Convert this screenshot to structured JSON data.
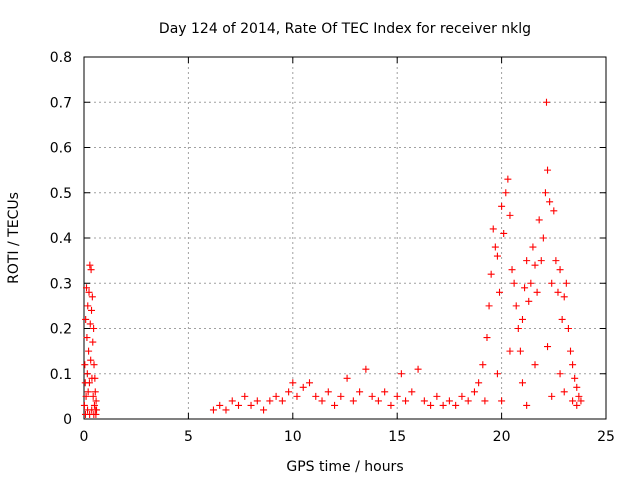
{
  "chart_data": {
    "type": "scatter",
    "title": "Day 124 of 2014, Rate Of TEC Index for receiver nklg",
    "xlabel": "GPS time / hours",
    "ylabel": "ROTI / TECUs",
    "xlim": [
      0,
      25
    ],
    "ylim": [
      0,
      0.8
    ],
    "xticks": [
      0,
      5,
      10,
      15,
      20,
      25
    ],
    "xtick_labels": [
      "0",
      "5",
      "10",
      "15",
      "20",
      "25"
    ],
    "yticks": [
      0,
      0.1,
      0.2,
      0.3,
      0.4,
      0.5,
      0.6,
      0.7,
      0.8
    ],
    "ytick_labels": [
      "0",
      "0.1",
      "0.2",
      "0.3",
      "0.4",
      "0.5",
      "0.6",
      "0.7",
      "0.8"
    ],
    "grid": true,
    "marker": "+",
    "color": "#ff0000",
    "series": [
      {
        "name": "ROTI",
        "points": [
          [
            0.02,
            0.03
          ],
          [
            0.04,
            0.12
          ],
          [
            0.06,
            0.08
          ],
          [
            0.08,
            0.22
          ],
          [
            0.1,
            0.05
          ],
          [
            0.12,
            0.29
          ],
          [
            0.14,
            0.18
          ],
          [
            0.16,
            0.1
          ],
          [
            0.18,
            0.25
          ],
          [
            0.2,
            0.06
          ],
          [
            0.22,
            0.15
          ],
          [
            0.24,
            0.28
          ],
          [
            0.26,
            0.08
          ],
          [
            0.28,
            0.34
          ],
          [
            0.3,
            0.21
          ],
          [
            0.32,
            0.13
          ],
          [
            0.34,
            0.33
          ],
          [
            0.36,
            0.24
          ],
          [
            0.38,
            0.09
          ],
          [
            0.4,
            0.27
          ],
          [
            0.42,
            0.17
          ],
          [
            0.44,
            0.05
          ],
          [
            0.46,
            0.2
          ],
          [
            0.48,
            0.12
          ],
          [
            0.5,
            0.03
          ],
          [
            0.52,
            0.09
          ],
          [
            0.54,
            0.06
          ],
          [
            0.56,
            0.02
          ],
          [
            0.58,
            0.04
          ],
          [
            0.6,
            0.02
          ],
          [
            0.07,
            0.01
          ],
          [
            0.17,
            0.02
          ],
          [
            0.27,
            0.01
          ],
          [
            0.37,
            0.02
          ],
          [
            0.47,
            0.01
          ],
          [
            0.57,
            0.01
          ],
          [
            6.2,
            0.02
          ],
          [
            6.5,
            0.03
          ],
          [
            6.8,
            0.02
          ],
          [
            7.1,
            0.04
          ],
          [
            7.4,
            0.03
          ],
          [
            7.7,
            0.05
          ],
          [
            8.0,
            0.03
          ],
          [
            8.3,
            0.04
          ],
          [
            8.6,
            0.02
          ],
          [
            8.9,
            0.04
          ],
          [
            9.2,
            0.05
          ],
          [
            9.5,
            0.04
          ],
          [
            9.8,
            0.06
          ],
          [
            10.0,
            0.08
          ],
          [
            10.2,
            0.05
          ],
          [
            10.5,
            0.07
          ],
          [
            10.8,
            0.08
          ],
          [
            11.1,
            0.05
          ],
          [
            11.4,
            0.04
          ],
          [
            11.7,
            0.06
          ],
          [
            12.0,
            0.03
          ],
          [
            12.3,
            0.05
          ],
          [
            12.6,
            0.09
          ],
          [
            12.9,
            0.04
          ],
          [
            13.2,
            0.06
          ],
          [
            13.5,
            0.11
          ],
          [
            13.8,
            0.05
          ],
          [
            14.1,
            0.04
          ],
          [
            14.4,
            0.06
          ],
          [
            14.7,
            0.03
          ],
          [
            15.0,
            0.05
          ],
          [
            15.2,
            0.1
          ],
          [
            15.4,
            0.04
          ],
          [
            15.7,
            0.06
          ],
          [
            16.0,
            0.11
          ],
          [
            16.3,
            0.04
          ],
          [
            16.6,
            0.03
          ],
          [
            16.9,
            0.05
          ],
          [
            17.2,
            0.03
          ],
          [
            17.5,
            0.04
          ],
          [
            17.8,
            0.03
          ],
          [
            18.1,
            0.05
          ],
          [
            18.4,
            0.04
          ],
          [
            18.7,
            0.06
          ],
          [
            18.9,
            0.08
          ],
          [
            19.1,
            0.12
          ],
          [
            19.3,
            0.18
          ],
          [
            19.4,
            0.25
          ],
          [
            19.5,
            0.32
          ],
          [
            19.6,
            0.42
          ],
          [
            19.7,
            0.38
          ],
          [
            19.8,
            0.36
          ],
          [
            19.9,
            0.28
          ],
          [
            20.0,
            0.47
          ],
          [
            20.1,
            0.41
          ],
          [
            20.2,
            0.5
          ],
          [
            20.3,
            0.53
          ],
          [
            20.4,
            0.45
          ],
          [
            20.5,
            0.33
          ],
          [
            20.6,
            0.3
          ],
          [
            20.7,
            0.25
          ],
          [
            20.8,
            0.2
          ],
          [
            20.9,
            0.15
          ],
          [
            21.0,
            0.22
          ],
          [
            21.1,
            0.29
          ],
          [
            21.2,
            0.35
          ],
          [
            21.3,
            0.26
          ],
          [
            21.4,
            0.3
          ],
          [
            21.5,
            0.38
          ],
          [
            21.6,
            0.34
          ],
          [
            21.7,
            0.28
          ],
          [
            21.8,
            0.44
          ],
          [
            21.9,
            0.35
          ],
          [
            22.0,
            0.4
          ],
          [
            22.1,
            0.5
          ],
          [
            22.15,
            0.7
          ],
          [
            22.2,
            0.55
          ],
          [
            22.3,
            0.48
          ],
          [
            22.4,
            0.3
          ],
          [
            22.5,
            0.46
          ],
          [
            22.6,
            0.35
          ],
          [
            22.7,
            0.28
          ],
          [
            22.8,
            0.33
          ],
          [
            22.9,
            0.22
          ],
          [
            23.0,
            0.27
          ],
          [
            23.1,
            0.3
          ],
          [
            23.2,
            0.2
          ],
          [
            23.3,
            0.15
          ],
          [
            23.4,
            0.12
          ],
          [
            23.5,
            0.09
          ],
          [
            23.6,
            0.07
          ],
          [
            23.7,
            0.05
          ],
          [
            23.8,
            0.04
          ],
          [
            19.2,
            0.04
          ],
          [
            19.8,
            0.1
          ],
          [
            20.4,
            0.15
          ],
          [
            21.0,
            0.08
          ],
          [
            21.6,
            0.12
          ],
          [
            22.2,
            0.16
          ],
          [
            22.8,
            0.1
          ],
          [
            23.4,
            0.04
          ],
          [
            20.0,
            0.04
          ],
          [
            21.2,
            0.03
          ],
          [
            22.4,
            0.05
          ],
          [
            23.0,
            0.06
          ],
          [
            23.6,
            0.03
          ]
        ]
      }
    ]
  }
}
